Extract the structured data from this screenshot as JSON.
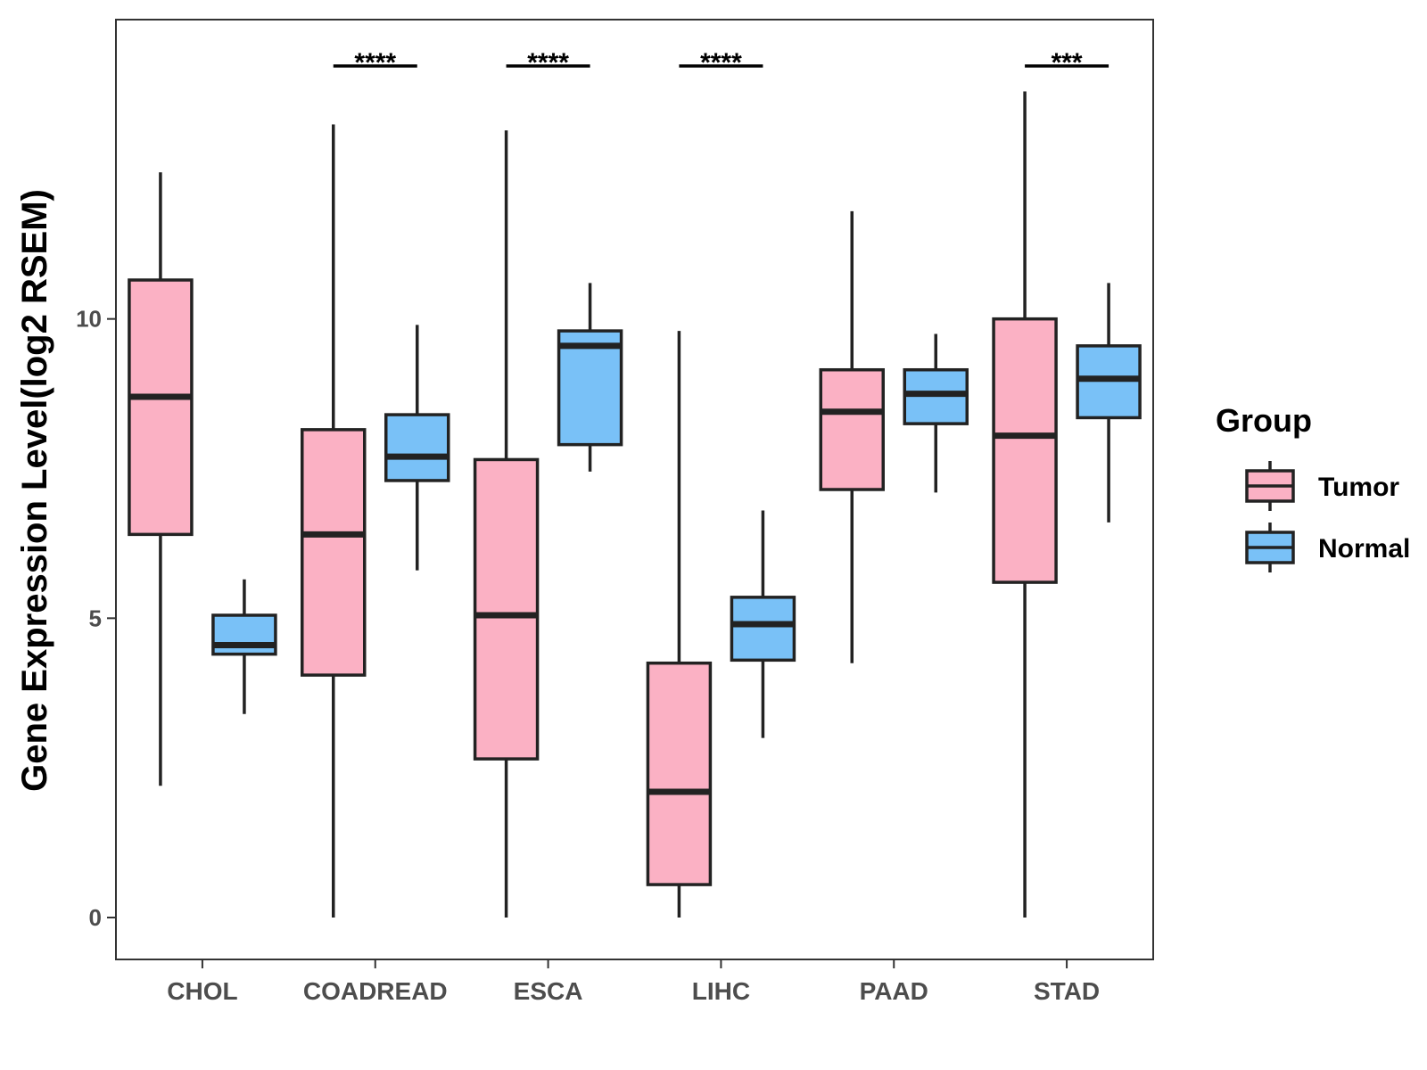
{
  "chart_data": {
    "type": "boxplot",
    "title": "",
    "xlabel": "",
    "ylabel": "Gene Expression Level(log2 RSEM)",
    "ylim": [
      -0.7,
      15.0
    ],
    "yticks": [
      0,
      5,
      10
    ],
    "categories": [
      "CHOL",
      "COADREAD",
      "ESCA",
      "LIHC",
      "PAAD",
      "STAD"
    ],
    "legend": {
      "title": "Group",
      "position": "right",
      "entries": [
        {
          "name": "Tumor",
          "color": "#fbb1c4"
        },
        {
          "name": "Normal",
          "color": "#79c1f7"
        }
      ]
    },
    "series": [
      {
        "name": "Tumor",
        "color": "#fbb1c4",
        "boxes": [
          {
            "min": 2.2,
            "q1": 6.4,
            "median": 8.7,
            "q3": 10.65,
            "max": 12.45
          },
          {
            "min": 0.0,
            "q1": 4.05,
            "median": 6.4,
            "q3": 8.15,
            "max": 13.25
          },
          {
            "min": 0.0,
            "q1": 2.65,
            "median": 5.05,
            "q3": 7.65,
            "max": 13.15
          },
          {
            "min": 0.0,
            "q1": 0.55,
            "median": 2.1,
            "q3": 4.25,
            "max": 9.8
          },
          {
            "min": 4.25,
            "q1": 7.15,
            "median": 8.45,
            "q3": 9.15,
            "max": 11.8
          },
          {
            "min": 0.0,
            "q1": 5.6,
            "median": 8.05,
            "q3": 10.0,
            "max": 13.8
          }
        ]
      },
      {
        "name": "Normal",
        "color": "#79c1f7",
        "boxes": [
          {
            "min": 3.4,
            "q1": 4.4,
            "median": 4.55,
            "q3": 5.05,
            "max": 5.65
          },
          {
            "min": 5.8,
            "q1": 7.3,
            "median": 7.7,
            "q3": 8.4,
            "max": 9.9
          },
          {
            "min": 7.45,
            "q1": 7.9,
            "median": 9.55,
            "q3": 9.8,
            "max": 10.6
          },
          {
            "min": 3.0,
            "q1": 4.3,
            "median": 4.9,
            "q3": 5.35,
            "max": 6.8
          },
          {
            "min": 7.1,
            "q1": 8.25,
            "median": 8.75,
            "q3": 9.15,
            "max": 9.75
          },
          {
            "min": 6.6,
            "q1": 8.35,
            "median": 9.0,
            "q3": 9.55,
            "max": 10.6
          }
        ]
      }
    ],
    "significance": [
      {
        "category": "COADREAD",
        "label": "****"
      },
      {
        "category": "ESCA",
        "label": "****"
      },
      {
        "category": "LIHC",
        "label": "****"
      },
      {
        "category": "STAD",
        "label": "***"
      }
    ]
  }
}
